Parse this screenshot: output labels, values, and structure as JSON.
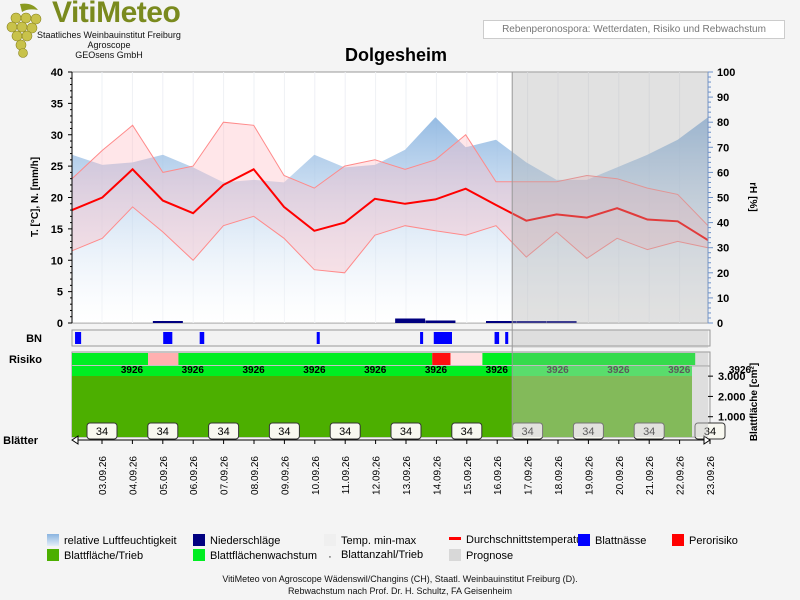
{
  "header": {
    "logo_title": "VitiMeteo",
    "logo_line1": "Staatliches Weinbauinstitut Freiburg",
    "logo_line2": "Agroscope",
    "logo_line3": "GEOsens GmbH",
    "banner": "Rebenperonospora: Wetterdaten, Risiko und Rebwachstum"
  },
  "colors": {
    "humidity": "#8ab4e0",
    "precip": "#000080",
    "temp_range": "#ffd0d0",
    "avg_temp": "#ff0000",
    "leaf_wetness": "#0000ff",
    "pero_risk": "#ff0000",
    "leaf_area": "#4caf00",
    "leaf_growth": "#00ee22",
    "forecast": "#d8d8d8"
  },
  "legend": {
    "humidity": "relative Luftfeuchtigkeit",
    "precip": "Niederschläge",
    "temp_range": "Temp. min-max",
    "avg_temp": "Durchschnittstemperatur",
    "leaf_wetness": "Blattnässe",
    "pero_risk": "Perorisiko",
    "leaf_area": "Blattfläche/Trieb",
    "leaf_growth": "Blattflächenwachstum",
    "leaf_count": "Blattanzahl/Trieb",
    "forecast": "Prognose"
  },
  "footer": {
    "line1": "VitiMeteo von Agroscope Wädenswil/Changins (CH), Staatl. Weinbauinstitut Freiburg (D).",
    "line2": "Rebwachstum nach Prof. Dr. H. Schultz, FA Geisenheim"
  },
  "chart_data": {
    "type": "line",
    "title": "Dolgesheim",
    "ylabel_left": "T. [°C], N. [mm/h]",
    "ylabel_right": "rH [%]",
    "ylabel_leaf": "Blattfläche [cm²]",
    "ylim_left": [
      0,
      40
    ],
    "yticks_left": [
      "0",
      "5",
      "10",
      "15",
      "20",
      "25",
      "30",
      "35",
      "40"
    ],
    "ylim_right": [
      0,
      100
    ],
    "yticks_right": [
      "0",
      "10",
      "20",
      "30",
      "40",
      "50",
      "60",
      "70",
      "80",
      "90",
      "100"
    ],
    "leaf_ticks": [
      "1.000",
      "2.000",
      "3.000"
    ],
    "row_labels": {
      "leaf_wetness": "BN",
      "risk": "Risiko",
      "leaves": "Blätter"
    },
    "x_dates": [
      "03.09.26",
      "04.09.26",
      "05.09.26",
      "06.09.26",
      "07.09.26",
      "08.09.26",
      "09.09.26",
      "10.09.26",
      "11.09.26",
      "12.09.26",
      "13.09.26",
      "14.09.26",
      "15.09.26",
      "16.09.26",
      "17.09.26",
      "18.09.26",
      "19.09.26",
      "20.09.26",
      "21.09.26",
      "22.09.26",
      "23.09.26"
    ],
    "forecast_start": "16.09.26",
    "t_avg": [
      18,
      20,
      24.5,
      19.5,
      17.5,
      22,
      24.5,
      18.5,
      14.7,
      16,
      19.8,
      19,
      19.7,
      21.4,
      18.8,
      16.3,
      17.3,
      16.8,
      18.3,
      16.5,
      16.2,
      13.2
    ],
    "t_min": [
      11.5,
      13.5,
      18.5,
      14.5,
      10,
      15.5,
      17,
      13.5,
      8.5,
      8,
      14,
      15.5,
      14.7,
      14,
      15.5,
      10.5,
      14.5,
      10.3,
      13.5,
      11.7,
      13,
      12
    ],
    "t_max": [
      23,
      27.5,
      31.5,
      24,
      25,
      32,
      31.5,
      23.5,
      21.5,
      25,
      26,
      24.5,
      26,
      30,
      22.5,
      22.5,
      22.5,
      23.5,
      23,
      21.5,
      20.5,
      15.5
    ],
    "rh": [
      67,
      63,
      64,
      67,
      62,
      56,
      57,
      56,
      67,
      62,
      63,
      69,
      82,
      70,
      73,
      64,
      57,
      57,
      62,
      67,
      73,
      82
    ],
    "precip": [
      0,
      0,
      0,
      0.2,
      0,
      0,
      0,
      0,
      0,
      0,
      0,
      0.9,
      0.5,
      0,
      0.3,
      0.2,
      0.1,
      0,
      0,
      0,
      0,
      0
    ],
    "risk_segments": [
      {
        "from": 0,
        "to": 2.5,
        "level": "low"
      },
      {
        "from": 2.5,
        "to": 3.5,
        "level": "medium"
      },
      {
        "from": 3.5,
        "to": 11.85,
        "level": "low"
      },
      {
        "from": 11.85,
        "to": 12.45,
        "level": "high"
      },
      {
        "from": 12.45,
        "to": 13.5,
        "level": "medium"
      },
      {
        "from": 13.5,
        "to": 20.5,
        "level": "low"
      }
    ],
    "wetness_spans": [
      [
        0.1,
        0.3
      ],
      [
        3,
        3.3
      ],
      [
        4.2,
        4.35
      ],
      [
        8.05,
        8.15
      ],
      [
        11.45,
        11.55
      ],
      [
        11.9,
        12.5
      ],
      [
        13.9,
        14.05
      ],
      [
        14.25,
        14.35
      ]
    ],
    "leaf_count_labels": [
      "34",
      "34",
      "34",
      "34",
      "34",
      "34",
      "34",
      "34",
      "34",
      "34",
      "34"
    ],
    "leaf_count_days": [
      0.5,
      2.5,
      4.5,
      6.5,
      8.5,
      10.5,
      12.5,
      14.5,
      16.5,
      18.5,
      20.5
    ],
    "leaf_area_max": 3500,
    "leaf_area": 3500,
    "date_strip_label": "3926"
  }
}
